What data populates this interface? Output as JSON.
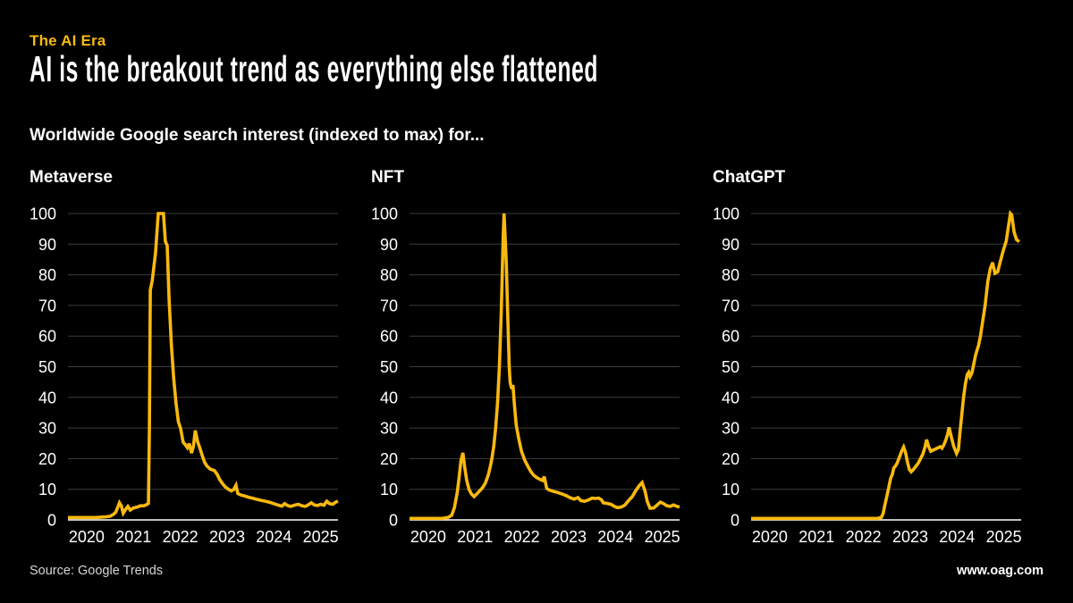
{
  "page": {
    "background": "#000000",
    "accent": "#F9B90E"
  },
  "header": {
    "kicker": "The AI Era",
    "title": "AI is the breakout trend as everything else flattened",
    "subtitle": "Worldwide Google search interest (indexed to max) for..."
  },
  "footer": {
    "source": "Source: Google Trends",
    "site": "www.oag.com"
  },
  "chart_data": {
    "type": "line",
    "title": "Worldwide Google search interest (indexed to max)",
    "xlabel": "",
    "ylabel": "",
    "x_range": [
      2020.0,
      2025.77
    ],
    "y_range": [
      0,
      100
    ],
    "x_ticks": [
      2020,
      2021,
      2022,
      2023,
      2024,
      2025
    ],
    "y_ticks": [
      0,
      10,
      20,
      30,
      40,
      50,
      60,
      70,
      80,
      90,
      100
    ],
    "grid": "horizontal",
    "legend_position": "none",
    "line_color": "#F9B90E",
    "grid_color": "#3D3D3D",
    "axis_color": "#FFFFFF",
    "panels": [
      {
        "title": "Metaverse",
        "points": [
          [
            2020.0,
            0.8
          ],
          [
            2020.3,
            0.8
          ],
          [
            2020.6,
            0.8
          ],
          [
            2020.8,
            1
          ],
          [
            2020.9,
            1.2
          ],
          [
            2020.97,
            1.8
          ],
          [
            2021.02,
            2.5
          ],
          [
            2021.06,
            4
          ],
          [
            2021.1,
            5.6
          ],
          [
            2021.14,
            4.6
          ],
          [
            2021.18,
            2.2
          ],
          [
            2021.24,
            3.6
          ],
          [
            2021.28,
            4.4
          ],
          [
            2021.33,
            3.2
          ],
          [
            2021.4,
            3.9
          ],
          [
            2021.48,
            4.2
          ],
          [
            2021.55,
            4.6
          ],
          [
            2021.62,
            4.6
          ],
          [
            2021.68,
            5
          ],
          [
            2021.72,
            5.4
          ],
          [
            2021.74,
            30
          ],
          [
            2021.76,
            75
          ],
          [
            2021.8,
            78
          ],
          [
            2021.87,
            87
          ],
          [
            2021.93,
            100
          ],
          [
            2022.04,
            100
          ],
          [
            2022.08,
            91
          ],
          [
            2022.12,
            89.5
          ],
          [
            2022.16,
            72
          ],
          [
            2022.21,
            57
          ],
          [
            2022.26,
            46
          ],
          [
            2022.31,
            38
          ],
          [
            2022.36,
            32
          ],
          [
            2022.41,
            29.7
          ],
          [
            2022.46,
            25.4
          ],
          [
            2022.51,
            24.5
          ],
          [
            2022.55,
            23.6
          ],
          [
            2022.59,
            24.9
          ],
          [
            2022.64,
            21.8
          ],
          [
            2022.68,
            24
          ],
          [
            2022.72,
            29.2
          ],
          [
            2022.77,
            25.5
          ],
          [
            2022.82,
            23.4
          ],
          [
            2022.87,
            21
          ],
          [
            2022.92,
            18.8
          ],
          [
            2022.97,
            17.6
          ],
          [
            2023.04,
            16.6
          ],
          [
            2023.13,
            16.1
          ],
          [
            2023.19,
            14.8
          ],
          [
            2023.24,
            13.2
          ],
          [
            2023.3,
            11.9
          ],
          [
            2023.36,
            10.8
          ],
          [
            2023.43,
            10
          ],
          [
            2023.49,
            9.5
          ],
          [
            2023.54,
            9.9
          ],
          [
            2023.59,
            11.3
          ],
          [
            2023.63,
            8.6
          ],
          [
            2023.7,
            8.1
          ],
          [
            2023.78,
            7.8
          ],
          [
            2023.86,
            7.4
          ],
          [
            2023.94,
            7.1
          ],
          [
            2024.02,
            6.8
          ],
          [
            2024.12,
            6.4
          ],
          [
            2024.22,
            6.1
          ],
          [
            2024.32,
            5.7
          ],
          [
            2024.42,
            5.2
          ],
          [
            2024.5,
            4.8
          ],
          [
            2024.57,
            4.5
          ],
          [
            2024.63,
            5.3
          ],
          [
            2024.69,
            4.7
          ],
          [
            2024.76,
            4.4
          ],
          [
            2024.84,
            4.8
          ],
          [
            2024.92,
            5.1
          ],
          [
            2025.0,
            4.6
          ],
          [
            2025.07,
            4.4
          ],
          [
            2025.14,
            5
          ],
          [
            2025.2,
            5.6
          ],
          [
            2025.26,
            4.9
          ],
          [
            2025.33,
            4.7
          ],
          [
            2025.4,
            5.1
          ],
          [
            2025.47,
            4.8
          ],
          [
            2025.53,
            6.1
          ],
          [
            2025.59,
            5.3
          ],
          [
            2025.66,
            5.1
          ],
          [
            2025.72,
            5.8
          ],
          [
            2025.77,
            6.1
          ]
        ]
      },
      {
        "title": "NFT",
        "points": [
          [
            2020.0,
            0.5
          ],
          [
            2020.4,
            0.5
          ],
          [
            2020.7,
            0.5
          ],
          [
            2020.82,
            0.8
          ],
          [
            2020.9,
            1.5
          ],
          [
            2020.96,
            4
          ],
          [
            2021.02,
            9
          ],
          [
            2021.06,
            14
          ],
          [
            2021.1,
            19.5
          ],
          [
            2021.14,
            21.9
          ],
          [
            2021.18,
            17
          ],
          [
            2021.22,
            13
          ],
          [
            2021.27,
            10
          ],
          [
            2021.32,
            8.5
          ],
          [
            2021.38,
            7.6
          ],
          [
            2021.44,
            8.5
          ],
          [
            2021.5,
            9.5
          ],
          [
            2021.56,
            10.5
          ],
          [
            2021.62,
            12
          ],
          [
            2021.68,
            14.5
          ],
          [
            2021.72,
            17
          ],
          [
            2021.76,
            20
          ],
          [
            2021.8,
            24
          ],
          [
            2021.84,
            30
          ],
          [
            2021.88,
            38
          ],
          [
            2021.92,
            50
          ],
          [
            2021.96,
            68
          ],
          [
            2022.0,
            92
          ],
          [
            2022.02,
            100
          ],
          [
            2022.05,
            90
          ],
          [
            2022.07,
            83
          ],
          [
            2022.1,
            66
          ],
          [
            2022.13,
            50
          ],
          [
            2022.15,
            45
          ],
          [
            2022.17,
            43.5
          ],
          [
            2022.19,
            42.8
          ],
          [
            2022.21,
            44
          ],
          [
            2022.24,
            38
          ],
          [
            2022.28,
            31
          ],
          [
            2022.33,
            26.7
          ],
          [
            2022.39,
            22.5
          ],
          [
            2022.46,
            19.5
          ],
          [
            2022.53,
            17.5
          ],
          [
            2022.59,
            15.8
          ],
          [
            2022.65,
            14.6
          ],
          [
            2022.72,
            13.8
          ],
          [
            2022.78,
            13.3
          ],
          [
            2022.84,
            12.9
          ],
          [
            2022.88,
            14.1
          ],
          [
            2022.93,
            10.3
          ],
          [
            2022.98,
            9.8
          ],
          [
            2023.06,
            9.4
          ],
          [
            2023.15,
            9
          ],
          [
            2023.25,
            8.5
          ],
          [
            2023.34,
            8
          ],
          [
            2023.44,
            7.2
          ],
          [
            2023.52,
            6.8
          ],
          [
            2023.6,
            7.3
          ],
          [
            2023.66,
            6.3
          ],
          [
            2023.74,
            6.1
          ],
          [
            2023.82,
            6.5
          ],
          [
            2023.9,
            7.1
          ],
          [
            2023.97,
            7
          ],
          [
            2024.04,
            7.1
          ],
          [
            2024.1,
            6.6
          ],
          [
            2024.14,
            5.6
          ],
          [
            2024.22,
            5.4
          ],
          [
            2024.3,
            5.1
          ],
          [
            2024.38,
            4.4
          ],
          [
            2024.44,
            4.0
          ],
          [
            2024.52,
            4.2
          ],
          [
            2024.6,
            4.8
          ],
          [
            2024.68,
            6.3
          ],
          [
            2024.76,
            7.6
          ],
          [
            2024.84,
            9.7
          ],
          [
            2024.92,
            11.4
          ],
          [
            2024.97,
            12.2
          ],
          [
            2025.03,
            9.5
          ],
          [
            2025.08,
            6
          ],
          [
            2025.14,
            3.8
          ],
          [
            2025.22,
            3.9
          ],
          [
            2025.3,
            5
          ],
          [
            2025.36,
            5.8
          ],
          [
            2025.43,
            5.3
          ],
          [
            2025.5,
            4.6
          ],
          [
            2025.57,
            4.4
          ],
          [
            2025.64,
            4.9
          ],
          [
            2025.7,
            4.5
          ],
          [
            2025.77,
            4.2
          ]
        ]
      },
      {
        "title": "ChatGPT",
        "points": [
          [
            2020.0,
            0.5
          ],
          [
            2020.5,
            0.5
          ],
          [
            2021.0,
            0.5
          ],
          [
            2021.5,
            0.5
          ],
          [
            2022.0,
            0.5
          ],
          [
            2022.4,
            0.5
          ],
          [
            2022.7,
            0.5
          ],
          [
            2022.78,
            0.8
          ],
          [
            2022.82,
            2
          ],
          [
            2022.86,
            5
          ],
          [
            2022.92,
            9
          ],
          [
            2022.98,
            13.5
          ],
          [
            2023.02,
            15
          ],
          [
            2023.05,
            17
          ],
          [
            2023.08,
            17.5
          ],
          [
            2023.12,
            18.5
          ],
          [
            2023.17,
            20.5
          ],
          [
            2023.22,
            22.5
          ],
          [
            2023.26,
            23.8
          ],
          [
            2023.3,
            22
          ],
          [
            2023.34,
            19
          ],
          [
            2023.38,
            16.5
          ],
          [
            2023.42,
            15.7
          ],
          [
            2023.47,
            16.5
          ],
          [
            2023.52,
            17.5
          ],
          [
            2023.57,
            18.5
          ],
          [
            2023.62,
            20
          ],
          [
            2023.67,
            21.5
          ],
          [
            2023.71,
            23.5
          ],
          [
            2023.75,
            26.2
          ],
          [
            2023.79,
            24
          ],
          [
            2023.84,
            22.4
          ],
          [
            2023.89,
            22.8
          ],
          [
            2023.95,
            23.2
          ],
          [
            2024.0,
            23.6
          ],
          [
            2024.04,
            23.9
          ],
          [
            2024.08,
            23.4
          ],
          [
            2024.12,
            24.5
          ],
          [
            2024.16,
            26
          ],
          [
            2024.2,
            28
          ],
          [
            2024.23,
            30.2
          ],
          [
            2024.28,
            27
          ],
          [
            2024.33,
            24
          ],
          [
            2024.39,
            21.7
          ],
          [
            2024.43,
            23
          ],
          [
            2024.46,
            28
          ],
          [
            2024.5,
            34
          ],
          [
            2024.54,
            40
          ],
          [
            2024.58,
            44.5
          ],
          [
            2024.62,
            47.5
          ],
          [
            2024.65,
            48.2
          ],
          [
            2024.68,
            46.8
          ],
          [
            2024.72,
            48
          ],
          [
            2024.76,
            51
          ],
          [
            2024.8,
            54
          ],
          [
            2024.86,
            57
          ],
          [
            2024.9,
            60
          ],
          [
            2024.96,
            66
          ],
          [
            2025.0,
            70
          ],
          [
            2025.06,
            78
          ],
          [
            2025.11,
            82
          ],
          [
            2025.16,
            84
          ],
          [
            2025.21,
            80.5
          ],
          [
            2025.27,
            81
          ],
          [
            2025.32,
            84
          ],
          [
            2025.38,
            87.5
          ],
          [
            2025.45,
            91
          ],
          [
            2025.5,
            96
          ],
          [
            2025.54,
            100
          ],
          [
            2025.57,
            99.5
          ],
          [
            2025.62,
            94
          ],
          [
            2025.67,
            91.5
          ],
          [
            2025.73,
            90.8
          ]
        ]
      }
    ]
  }
}
